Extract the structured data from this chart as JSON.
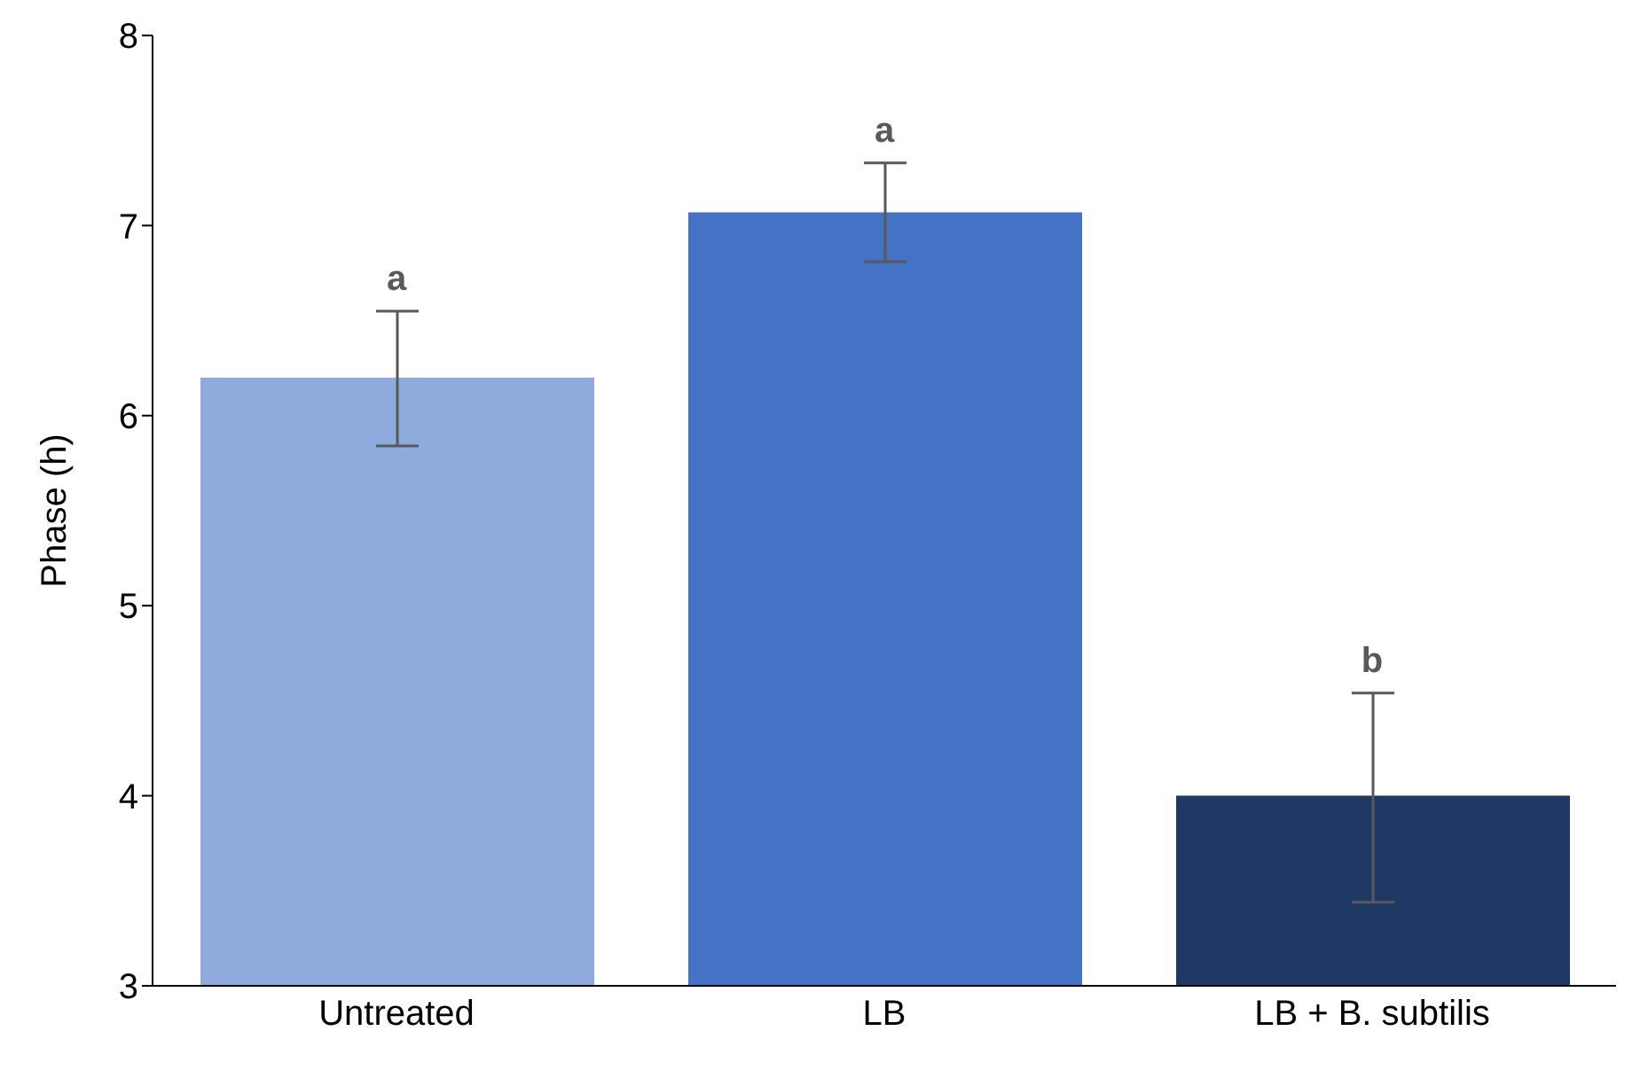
{
  "chart_data": {
    "type": "bar",
    "ylabel": "Phase (h)",
    "categories": [
      "Untreated",
      "LB",
      "LB + B. subtilis"
    ],
    "values": [
      6.2,
      7.07,
      4.0
    ],
    "colors": [
      "#8faadc",
      "#4472c4",
      "#203864"
    ],
    "errors": [
      [
        5.84,
        6.55
      ],
      [
        6.81,
        7.33
      ],
      [
        3.44,
        4.54
      ]
    ],
    "ylim": [
      3,
      8
    ],
    "yticks": [
      3,
      4,
      5,
      6,
      7,
      8
    ],
    "grid": false,
    "legend": false,
    "annotations": [
      {
        "text": "a",
        "x": "Untreated",
        "y": 6.55
      },
      {
        "text": "a",
        "x": "LB",
        "y": 7.33
      },
      {
        "text": "b",
        "x": "LB + B. subtilis",
        "y": 4.54
      }
    ]
  }
}
